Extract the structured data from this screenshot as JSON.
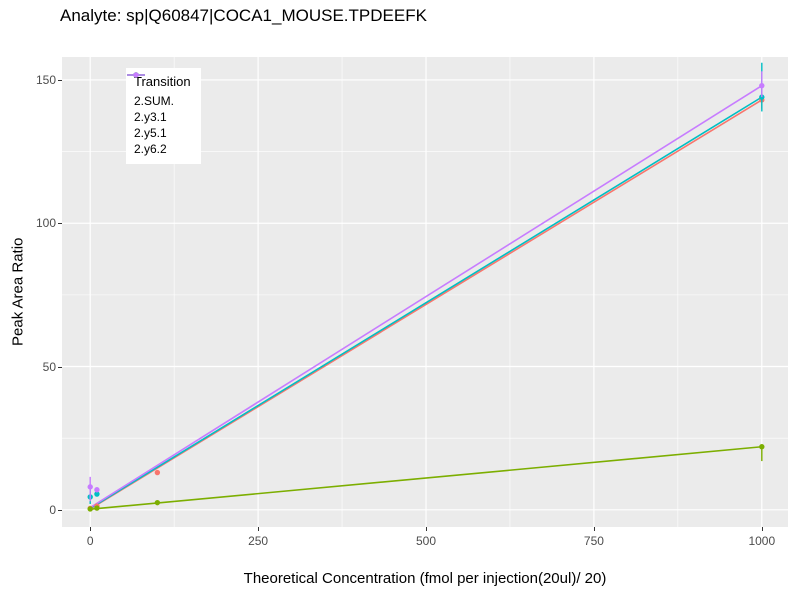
{
  "chart_data": {
    "type": "scatter",
    "title": "Analyte: sp|Q60847|COCA1_MOUSE.TPDEEFK",
    "xlabel": "Theoretical Concentration (fmol per injection(20ul)/ 20)",
    "ylabel": "Peak Area Ratio",
    "legend_title": "Transition",
    "legend_position": "top-left-inside",
    "grid": true,
    "panel_background": "#EBEBEB",
    "gridline_color": "#FFFFFF",
    "xlim": [
      -42,
      1039
    ],
    "ylim": [
      -6,
      158
    ],
    "x_ticks": [
      0,
      250,
      500,
      750,
      1000
    ],
    "x_minor_ticks": [
      125,
      375,
      625,
      875
    ],
    "y_ticks": [
      0,
      50,
      100,
      150
    ],
    "y_minor_ticks": [
      25,
      75,
      125
    ],
    "series": [
      {
        "name": "2.SUM.",
        "color": "#F8766D",
        "fit_line": {
          "x": [
            0,
            1000
          ],
          "y": [
            0.3,
            143
          ]
        },
        "points": [
          {
            "x": 0,
            "y": 0.5
          },
          {
            "x": 10,
            "y": 1.3
          },
          {
            "x": 100,
            "y": 13
          },
          {
            "x": 1000,
            "y": 143
          }
        ],
        "error_bars": [
          {
            "x": 1000,
            "low": 140,
            "high": 146
          }
        ]
      },
      {
        "name": "2.y3.1",
        "color": "#7CAE00",
        "fit_line": {
          "x": [
            0,
            1000
          ],
          "y": [
            0.2,
            22
          ]
        },
        "points": [
          {
            "x": 0,
            "y": 0.3
          },
          {
            "x": 10,
            "y": 0.6
          },
          {
            "x": 100,
            "y": 2.5
          },
          {
            "x": 1000,
            "y": 22
          }
        ],
        "error_bars": [
          {
            "x": 1000,
            "low": 17,
            "high": 22.5
          }
        ]
      },
      {
        "name": "2.y5.1",
        "color": "#00BFC4",
        "fit_line": {
          "x": [
            0,
            1000
          ],
          "y": [
            0.5,
            144
          ]
        },
        "points": [
          {
            "x": 0,
            "y": 4.5
          },
          {
            "x": 10,
            "y": 5.5
          },
          {
            "x": 1000,
            "y": 144
          }
        ],
        "error_bars": [
          {
            "x": 0,
            "low": 2,
            "high": 8
          },
          {
            "x": 1000,
            "low": 139,
            "high": 156
          }
        ]
      },
      {
        "name": "2.y6.2",
        "color": "#C77CFF",
        "fit_line": {
          "x": [
            0,
            1000
          ],
          "y": [
            0.8,
            148
          ]
        },
        "points": [
          {
            "x": 0,
            "y": 8
          },
          {
            "x": 10,
            "y": 7
          },
          {
            "x": 1000,
            "y": 148
          }
        ],
        "error_bars": [
          {
            "x": 0,
            "low": 3,
            "high": 11.5
          },
          {
            "x": 1000,
            "low": 144,
            "high": 153
          }
        ]
      }
    ]
  }
}
